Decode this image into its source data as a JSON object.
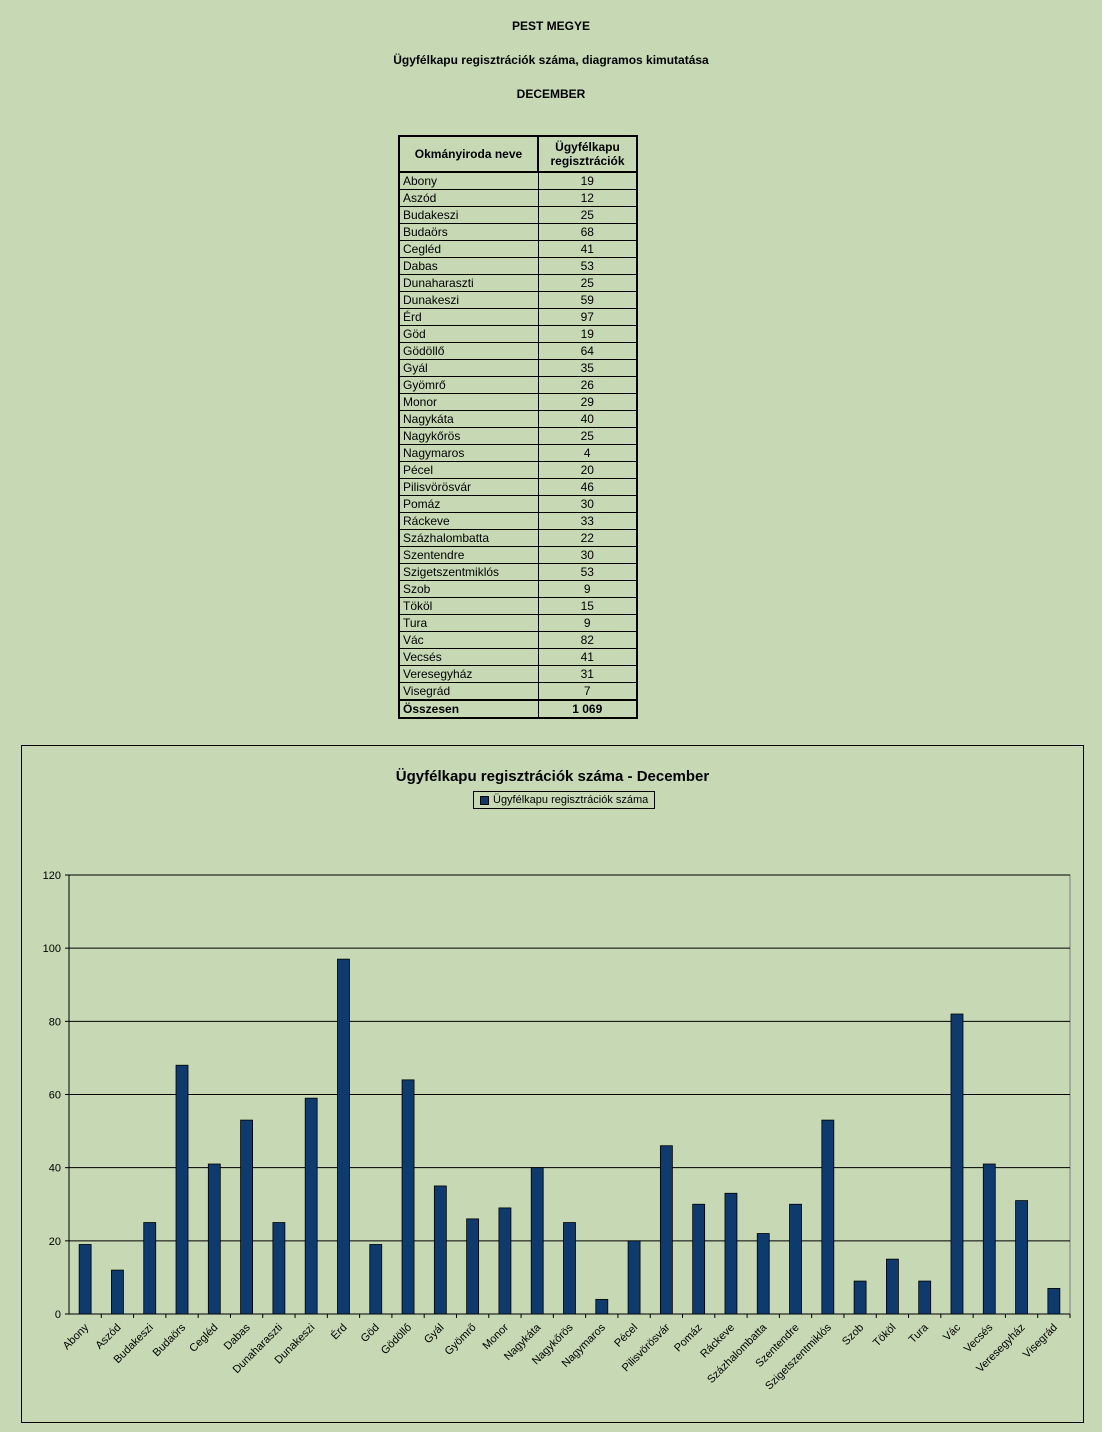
{
  "header": {
    "title": "PEST MEGYE",
    "subtitle": "Ügyfélkapu regisztrációk száma, diagramos kimutatása",
    "month": "DECEMBER"
  },
  "table": {
    "col_name": "Okmányiroda neve",
    "col_value_line1": "Ügyfélkapu",
    "col_value_line2": "regisztrációk",
    "rows": [
      {
        "name": "Abony",
        "value": "19"
      },
      {
        "name": "Aszód",
        "value": "12"
      },
      {
        "name": "Budakeszi",
        "value": "25"
      },
      {
        "name": "Budaörs",
        "value": "68"
      },
      {
        "name": "Cegléd",
        "value": "41"
      },
      {
        "name": "Dabas",
        "value": "53"
      },
      {
        "name": "Dunaharaszti",
        "value": "25"
      },
      {
        "name": "Dunakeszi",
        "value": "59"
      },
      {
        "name": "Érd",
        "value": "97"
      },
      {
        "name": "Göd",
        "value": "19"
      },
      {
        "name": "Gödöllő",
        "value": "64"
      },
      {
        "name": "Gyál",
        "value": "35"
      },
      {
        "name": "Gyömrő",
        "value": "26"
      },
      {
        "name": "Monor",
        "value": "29"
      },
      {
        "name": "Nagykáta",
        "value": "40"
      },
      {
        "name": "Nagykőrös",
        "value": "25"
      },
      {
        "name": "Nagymaros",
        "value": "4"
      },
      {
        "name": "Pécel",
        "value": "20"
      },
      {
        "name": "Pilisvörösvár",
        "value": "46"
      },
      {
        "name": "Pomáz",
        "value": "30"
      },
      {
        "name": "Ráckeve",
        "value": "33"
      },
      {
        "name": "Százhalombatta",
        "value": "22"
      },
      {
        "name": "Szentendre",
        "value": "30"
      },
      {
        "name": "Szigetszentmiklós",
        "value": "53"
      },
      {
        "name": "Szob",
        "value": "9"
      },
      {
        "name": "Tököl",
        "value": "15"
      },
      {
        "name": "Tura",
        "value": "9"
      },
      {
        "name": "Vác",
        "value": "82"
      },
      {
        "name": "Vecsés",
        "value": "41"
      },
      {
        "name": "Veresegyház",
        "value": "31"
      },
      {
        "name": "Visegrád",
        "value": "7"
      }
    ],
    "total_label": "Összesen",
    "total_value": "1 069"
  },
  "colors": {
    "background": "#c6d9b4",
    "bar": "#0f3a6e"
  },
  "chart_data": {
    "type": "bar",
    "title": "Ügyfélkapu regisztrációk száma - December",
    "legend_position": "top",
    "grid": true,
    "ylim": [
      0,
      120
    ],
    "yticks": [
      0,
      20,
      40,
      60,
      80,
      100,
      120
    ],
    "categories": [
      "Abony",
      "Aszód",
      "Budakeszi",
      "Budaörs",
      "Cegléd",
      "Dabas",
      "Dunaharaszti",
      "Dunakeszi",
      "Érd",
      "Göd",
      "Gödöllő",
      "Gyál",
      "Gyömrő",
      "Monor",
      "Nagykáta",
      "Nagykőrös",
      "Nagymaros",
      "Pécel",
      "Pilisvörösvár",
      "Pomáz",
      "Ráckeve",
      "Százhalombatta",
      "Szentendre",
      "Szigetszentmiklós",
      "Szob",
      "Tököl",
      "Tura",
      "Vác",
      "Vecsés",
      "Veresegyház",
      "Visegrád"
    ],
    "series": [
      {
        "name": "Ügyfélkapu regisztrációk száma",
        "values": [
          19,
          12,
          25,
          68,
          41,
          53,
          25,
          59,
          97,
          19,
          64,
          35,
          26,
          29,
          40,
          25,
          4,
          20,
          46,
          30,
          33,
          22,
          30,
          53,
          9,
          15,
          9,
          82,
          41,
          31,
          7
        ]
      }
    ]
  }
}
